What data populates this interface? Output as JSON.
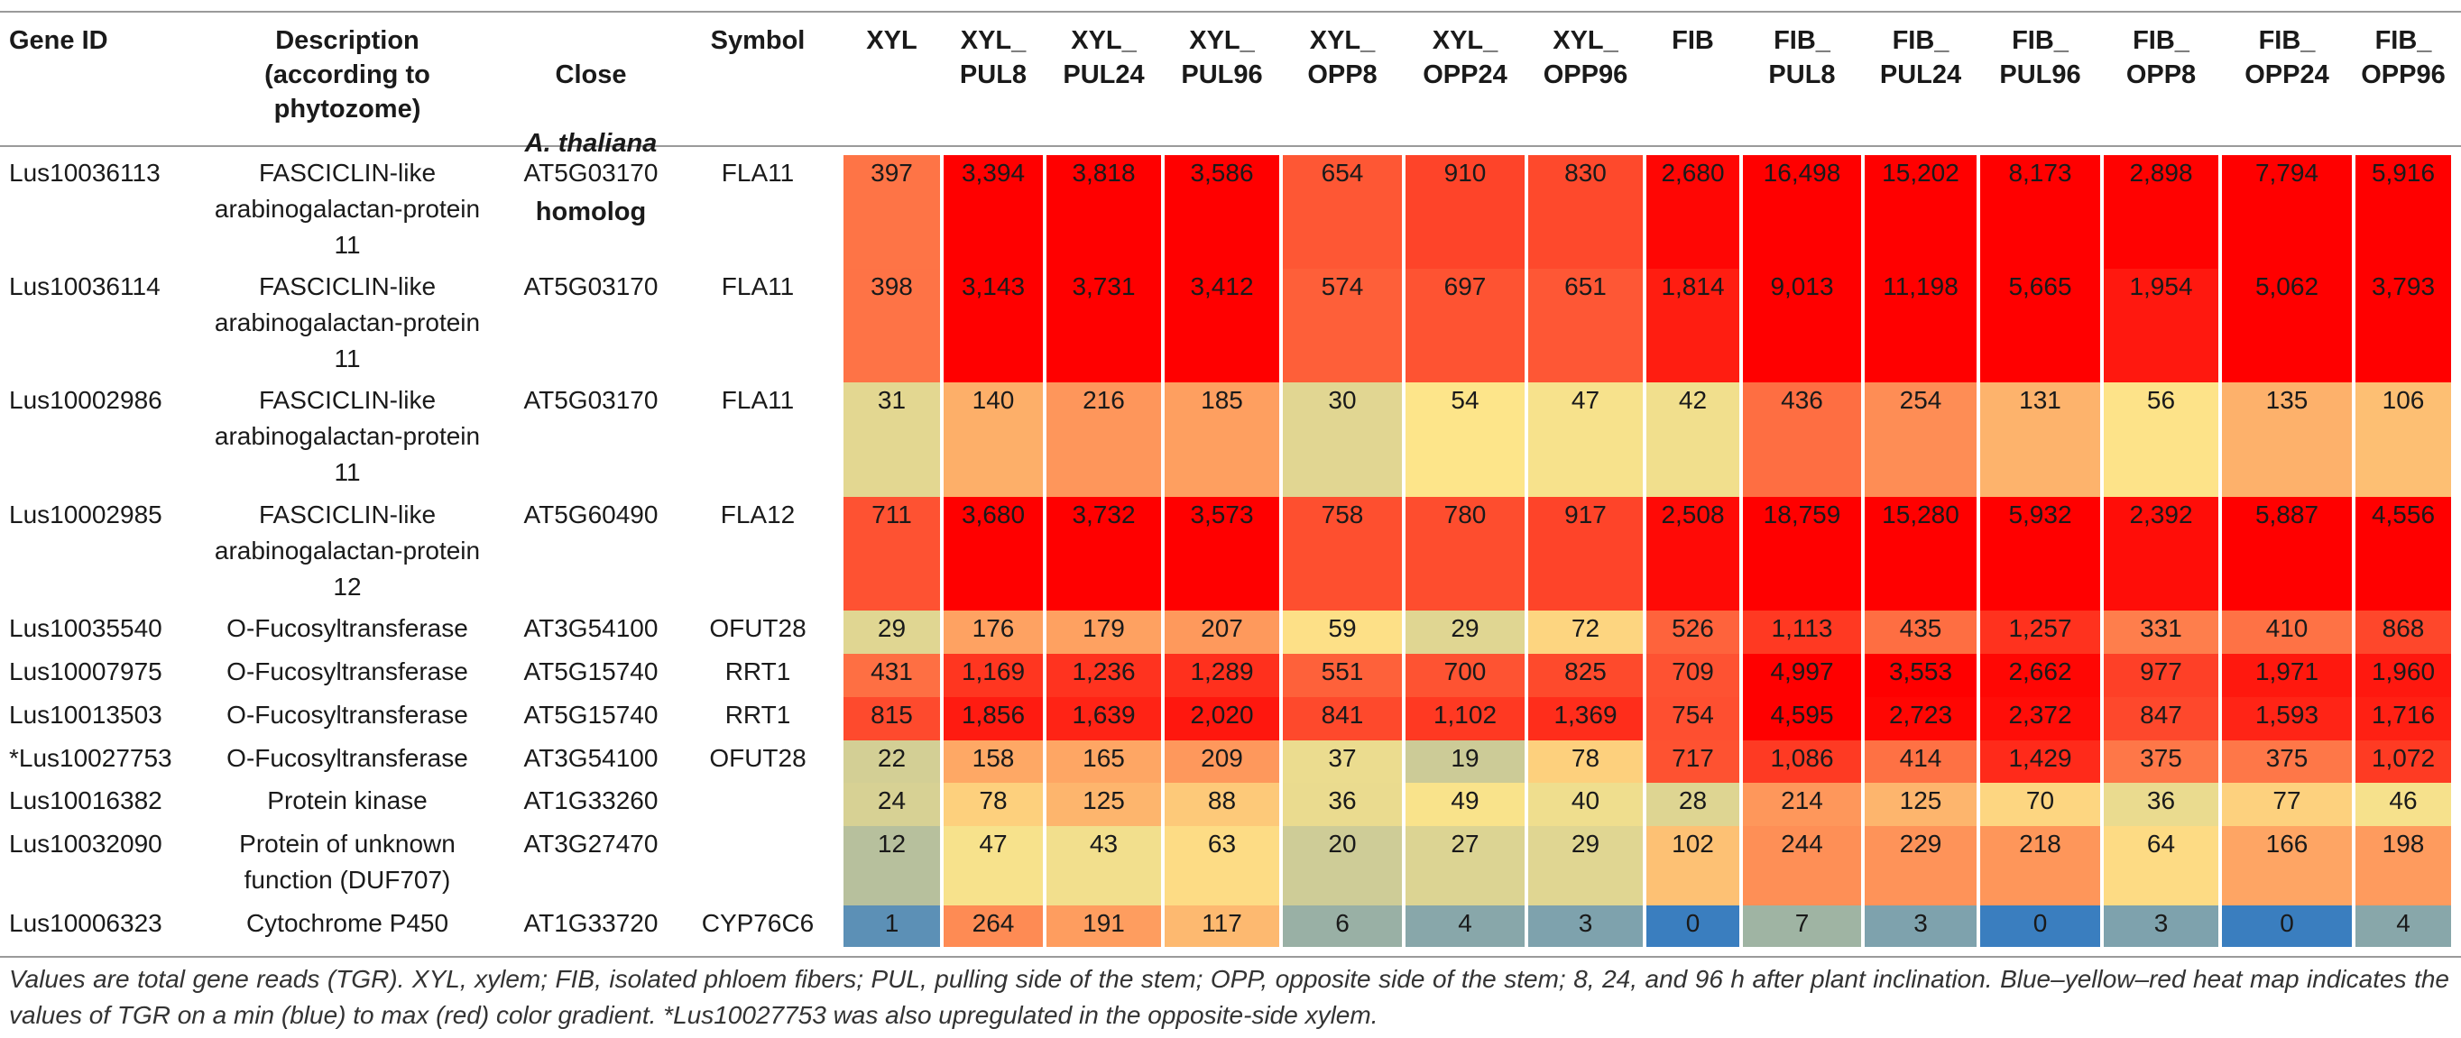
{
  "columns": {
    "gene_id": "Gene ID",
    "description": "Description\n(according to\nphytozome)",
    "close_prefix": "Close",
    "close_species": "A. thaliana",
    "close_suffix": "homolog",
    "symbol": "Symbol",
    "samples": [
      "XYL",
      "XYL_\nPUL8",
      "XYL_\nPUL24",
      "XYL_\nPUL96",
      "XYL_\nOPP8",
      "XYL_\nOPP24",
      "XYL_\nOPP96",
      "FIB",
      "FIB_\nPUL8",
      "FIB_\nPUL24",
      "FIB_\nPUL96",
      "FIB_\nOPP8",
      "FIB_\nOPP24",
      "FIB_\nOPP96"
    ]
  },
  "rows": [
    {
      "gene_id": "Lus10036113",
      "description": "FASCICLIN-like\narabinogalactan-protein\n11",
      "homolog": "AT5G03170",
      "symbol": "FLA11",
      "values": [
        "397",
        "3,394",
        "3,818",
        "3,586",
        "654",
        "910",
        "830",
        "2,680",
        "16,498",
        "15,202",
        "8,173",
        "2,898",
        "7,794",
        "5,916"
      ]
    },
    {
      "gene_id": "Lus10036114",
      "description": "FASCICLIN-like\narabinogalactan-protein\n11",
      "homolog": "AT5G03170",
      "symbol": "FLA11",
      "values": [
        "398",
        "3,143",
        "3,731",
        "3,412",
        "574",
        "697",
        "651",
        "1,814",
        "9,013",
        "11,198",
        "5,665",
        "1,954",
        "5,062",
        "3,793"
      ]
    },
    {
      "gene_id": "Lus10002986",
      "description": "FASCICLIN-like\narabinogalactan-protein\n11",
      "homolog": "AT5G03170",
      "symbol": "FLA11",
      "values": [
        "31",
        "140",
        "216",
        "185",
        "30",
        "54",
        "47",
        "42",
        "436",
        "254",
        "131",
        "56",
        "135",
        "106"
      ]
    },
    {
      "gene_id": "Lus10002985",
      "description": "FASCICLIN-like\narabinogalactan-protein\n12",
      "homolog": "AT5G60490",
      "symbol": "FLA12",
      "values": [
        "711",
        "3,680",
        "3,732",
        "3,573",
        "758",
        "780",
        "917",
        "2,508",
        "18,759",
        "15,280",
        "5,932",
        "2,392",
        "5,887",
        "4,556"
      ]
    },
    {
      "gene_id": "Lus10035540",
      "description": "O-Fucosyltransferase",
      "homolog": "AT3G54100",
      "symbol": "OFUT28",
      "values": [
        "29",
        "176",
        "179",
        "207",
        "59",
        "29",
        "72",
        "526",
        "1,113",
        "435",
        "1,257",
        "331",
        "410",
        "868"
      ]
    },
    {
      "gene_id": "Lus10007975",
      "description": "O-Fucosyltransferase",
      "homolog": "AT5G15740",
      "symbol": "RRT1",
      "values": [
        "431",
        "1,169",
        "1,236",
        "1,289",
        "551",
        "700",
        "825",
        "709",
        "4,997",
        "3,553",
        "2,662",
        "977",
        "1,971",
        "1,960"
      ]
    },
    {
      "gene_id": "Lus10013503",
      "description": "O-Fucosyltransferase",
      "homolog": "AT5G15740",
      "symbol": "RRT1",
      "values": [
        "815",
        "1,856",
        "1,639",
        "2,020",
        "841",
        "1,102",
        "1,369",
        "754",
        "4,595",
        "2,723",
        "2,372",
        "847",
        "1,593",
        "1,716"
      ]
    },
    {
      "gene_id": "*Lus10027753",
      "description": "O-Fucosyltransferase",
      "homolog": "AT3G54100",
      "symbol": "OFUT28",
      "values": [
        "22",
        "158",
        "165",
        "209",
        "37",
        "19",
        "78",
        "717",
        "1,086",
        "414",
        "1,429",
        "375",
        "375",
        "1,072"
      ]
    },
    {
      "gene_id": "Lus10016382",
      "description": "Protein kinase",
      "homolog": "AT1G33260",
      "symbol": "",
      "values": [
        "24",
        "78",
        "125",
        "88",
        "36",
        "49",
        "40",
        "28",
        "214",
        "125",
        "70",
        "36",
        "77",
        "46"
      ]
    },
    {
      "gene_id": "Lus10032090",
      "description": "Protein of unknown\nfunction (DUF707)",
      "homolog": "AT3G27470",
      "symbol": "",
      "values": [
        "12",
        "47",
        "43",
        "63",
        "20",
        "27",
        "29",
        "102",
        "244",
        "229",
        "218",
        "64",
        "166",
        "198"
      ]
    },
    {
      "gene_id": "Lus10006323",
      "description": "Cytochrome P450",
      "homolog": "AT1G33720",
      "symbol": "CYP76C6",
      "values": [
        "1",
        "264",
        "191",
        "117",
        "6",
        "4",
        "3",
        "0",
        "7",
        "3",
        "0",
        "3",
        "0",
        "4"
      ]
    }
  ],
  "colors": {
    "blue": "#3a7ebf",
    "yellow": "#fde58a",
    "red": "#ff0000"
  },
  "footnote": "Values are total gene reads (TGR). XYL, xylem; FIB, isolated phloem fibers; PUL, pulling side of the stem; OPP, opposite side of the stem; 8, 24, and 96 h after plant inclination. Blue–yellow–red heat map indicates the values of TGR on a min (blue) to max (red) color gradient. *Lus10027753 was also upregulated in the opposite-side xylem."
}
